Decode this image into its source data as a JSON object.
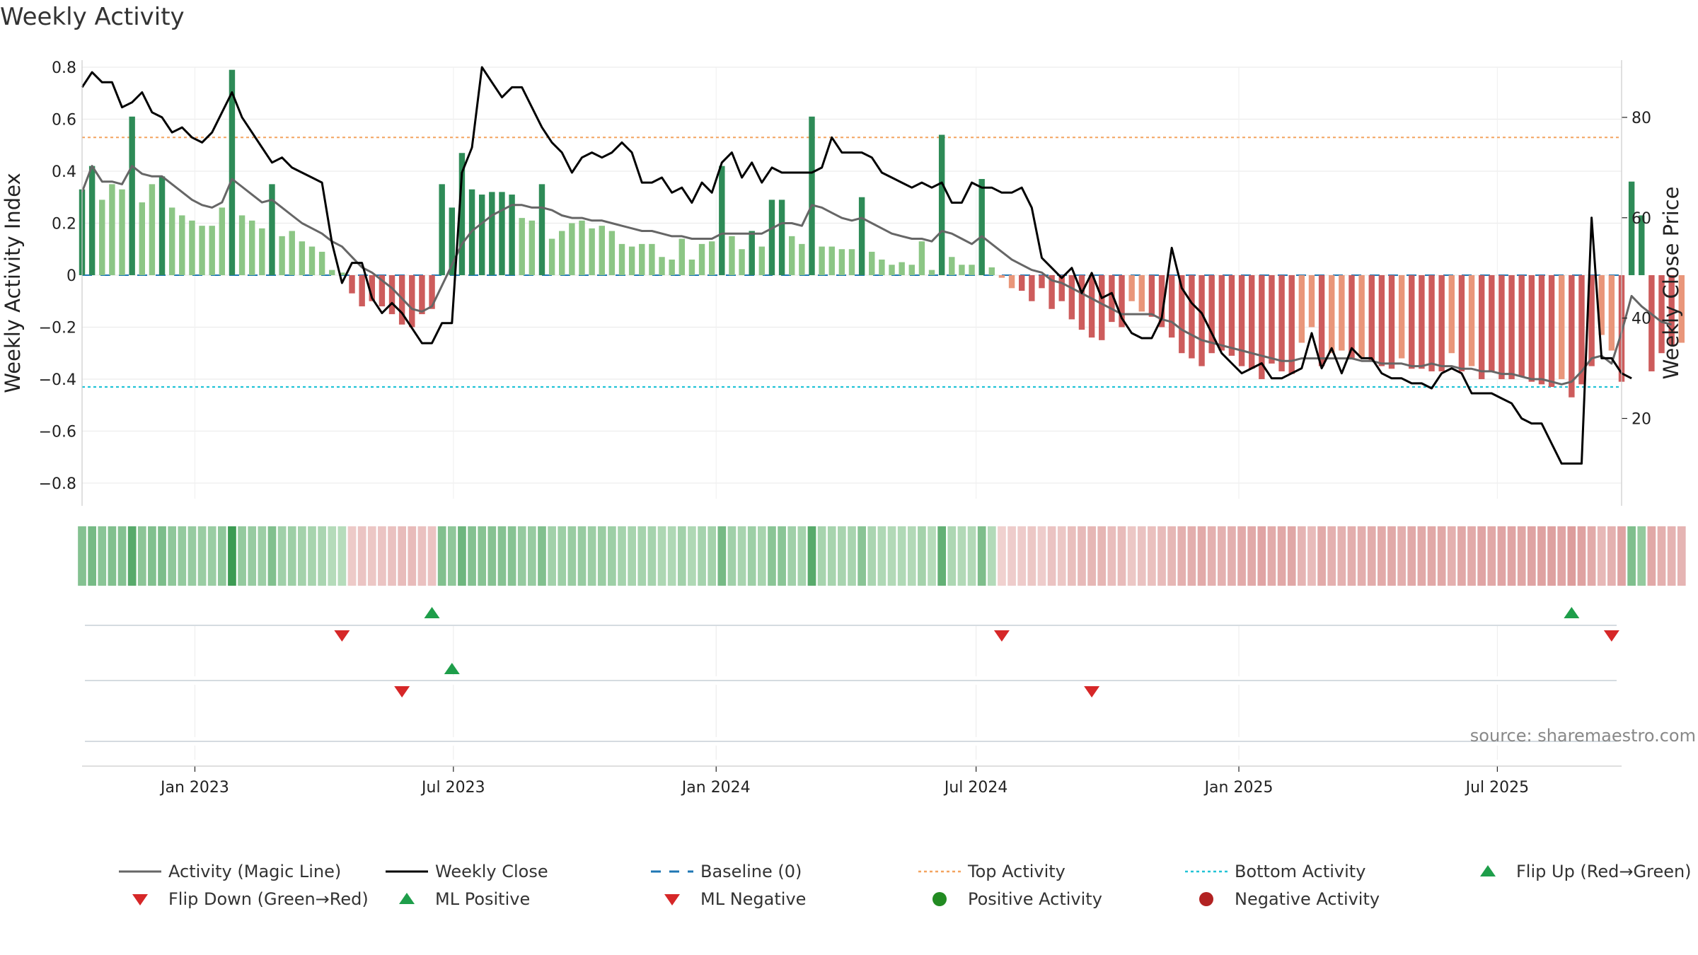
{
  "title": "Weekly Activity",
  "source": "source: sharemaestro.com",
  "colors": {
    "green_strong": "#2e8b57",
    "green_light": "#8cc685",
    "red_strong": "#cd5c5c",
    "red_light": "#e9967a",
    "magic_line": "#666666",
    "close_line": "#000000",
    "baseline": "#1f77b4",
    "top_line": "#f4a460",
    "bottom_line": "#22c3d6",
    "flip_up": "#1e9e4a",
    "flip_down": "#d62728",
    "positive_dot": "#228b22",
    "negative_dot": "#b22222"
  },
  "chart_data": {
    "type": "bar",
    "title": "Weekly Activity",
    "ylabel": "Weekly Activity Index",
    "y2label": "Weekly Close Price",
    "ylim": [
      -0.86,
      0.8
    ],
    "y2lim": [
      4,
      90
    ],
    "x_start": "2022-10-14",
    "x_end": "2025-09-26",
    "x_step_days": 7,
    "x_ticks": [
      "Jan 2023",
      "Jul 2023",
      "Jan 2024",
      "Jul 2024",
      "Jan 2025",
      "Jul 2025"
    ],
    "x_tick_dates": [
      "2023-01-01",
      "2023-07-01",
      "2024-01-01",
      "2024-07-01",
      "2025-01-01",
      "2025-07-01"
    ],
    "y_ticks": [
      0.8,
      0.6,
      0.4,
      0.2,
      0,
      -0.2,
      -0.4,
      -0.6,
      -0.8
    ],
    "y_tick_labels": [
      "0.8",
      "0.6",
      "0.4",
      "0.2",
      "0",
      "−0.2",
      "−0.4",
      "−0.6",
      "−0.8"
    ],
    "y2_ticks": [
      80,
      60,
      40,
      20
    ],
    "top_activity": 0.53,
    "bottom_activity": -0.43,
    "activity": [
      0.33,
      0.42,
      0.29,
      0.35,
      0.33,
      0.61,
      0.28,
      0.35,
      0.38,
      0.26,
      0.23,
      0.21,
      0.19,
      0.19,
      0.26,
      0.79,
      0.23,
      0.21,
      0.18,
      0.35,
      0.15,
      0.17,
      0.13,
      0.11,
      0.09,
      0.02,
      0.01,
      -0.07,
      -0.12,
      -0.1,
      -0.12,
      -0.15,
      -0.19,
      -0.2,
      -0.15,
      -0.13,
      0.35,
      0.26,
      0.47,
      0.33,
      0.31,
      0.32,
      0.32,
      0.31,
      0.22,
      0.21,
      0.35,
      0.14,
      0.17,
      0.2,
      0.21,
      0.18,
      0.19,
      0.17,
      0.12,
      0.11,
      0.12,
      0.12,
      0.07,
      0.06,
      0.14,
      0.06,
      0.12,
      0.13,
      0.42,
      0.15,
      0.1,
      0.17,
      0.11,
      0.29,
      0.29,
      0.15,
      0.12,
      0.61,
      0.11,
      0.11,
      0.1,
      0.1,
      0.3,
      0.09,
      0.06,
      0.04,
      0.05,
      0.04,
      0.13,
      0.02,
      0.54,
      0.07,
      0.04,
      0.04,
      0.37,
      0.03,
      -0.01,
      -0.05,
      -0.06,
      -0.1,
      -0.05,
      -0.13,
      -0.1,
      -0.17,
      -0.21,
      -0.24,
      -0.25,
      -0.18,
      -0.2,
      -0.1,
      -0.14,
      -0.16,
      -0.2,
      -0.24,
      -0.3,
      -0.32,
      -0.35,
      -0.3,
      -0.29,
      -0.31,
      -0.35,
      -0.36,
      -0.4,
      -0.34,
      -0.37,
      -0.38,
      -0.26,
      -0.2,
      -0.35,
      -0.3,
      -0.29,
      -0.32,
      -0.32,
      -0.33,
      -0.35,
      -0.36,
      -0.32,
      -0.36,
      -0.36,
      -0.37,
      -0.37,
      -0.3,
      -0.37,
      -0.35,
      -0.4,
      -0.37,
      -0.4,
      -0.4,
      -0.39,
      -0.41,
      -0.42,
      -0.43,
      -0.4,
      -0.47,
      -0.42,
      -0.35,
      -0.23,
      -0.29,
      -0.41,
      0.36,
      0.23,
      -0.37,
      -0.3,
      -0.27,
      -0.26
    ],
    "magic_line": [
      0.32,
      0.42,
      0.36,
      0.36,
      0.35,
      0.42,
      0.39,
      0.38,
      0.38,
      0.35,
      0.32,
      0.29,
      0.27,
      0.26,
      0.28,
      0.37,
      0.34,
      0.31,
      0.28,
      0.29,
      0.26,
      0.23,
      0.2,
      0.18,
      0.16,
      0.13,
      0.11,
      0.07,
      0.03,
      0.01,
      -0.02,
      -0.05,
      -0.09,
      -0.13,
      -0.14,
      -0.12,
      -0.04,
      0.04,
      0.12,
      0.17,
      0.2,
      0.23,
      0.25,
      0.27,
      0.27,
      0.26,
      0.26,
      0.25,
      0.23,
      0.22,
      0.22,
      0.21,
      0.21,
      0.2,
      0.19,
      0.18,
      0.17,
      0.17,
      0.16,
      0.15,
      0.15,
      0.14,
      0.14,
      0.14,
      0.16,
      0.16,
      0.16,
      0.16,
      0.16,
      0.18,
      0.2,
      0.2,
      0.19,
      0.27,
      0.26,
      0.24,
      0.22,
      0.21,
      0.22,
      0.2,
      0.18,
      0.16,
      0.15,
      0.14,
      0.14,
      0.13,
      0.17,
      0.16,
      0.14,
      0.12,
      0.15,
      0.12,
      0.09,
      0.06,
      0.04,
      0.02,
      0.01,
      -0.02,
      -0.03,
      -0.05,
      -0.07,
      -0.09,
      -0.11,
      -0.13,
      -0.15,
      -0.15,
      -0.15,
      -0.15,
      -0.17,
      -0.18,
      -0.21,
      -0.23,
      -0.25,
      -0.26,
      -0.27,
      -0.28,
      -0.29,
      -0.3,
      -0.31,
      -0.32,
      -0.33,
      -0.33,
      -0.32,
      -0.32,
      -0.32,
      -0.32,
      -0.32,
      -0.32,
      -0.33,
      -0.33,
      -0.34,
      -0.34,
      -0.34,
      -0.35,
      -0.35,
      -0.34,
      -0.35,
      -0.35,
      -0.36,
      -0.36,
      -0.37,
      -0.37,
      -0.38,
      -0.38,
      -0.39,
      -0.4,
      -0.4,
      -0.41,
      -0.42,
      -0.41,
      -0.37,
      -0.32,
      -0.31,
      -0.34,
      -0.22,
      -0.08,
      -0.12,
      -0.15,
      -0.18,
      -0.19
    ],
    "weekly_close": [
      86,
      89,
      87,
      87,
      82,
      83,
      85,
      81,
      80,
      77,
      78,
      76,
      75,
      77,
      81,
      85,
      80,
      77,
      74,
      71,
      72,
      70,
      69,
      68,
      67,
      55,
      47,
      51,
      51,
      44,
      41,
      43,
      41,
      38,
      35,
      35,
      39,
      39,
      69,
      74,
      90,
      87,
      84,
      86,
      86,
      82,
      78,
      75,
      73,
      69,
      72,
      73,
      72,
      73,
      75,
      73,
      67,
      67,
      68,
      65,
      66,
      63,
      67,
      65,
      71,
      73,
      68,
      71,
      67,
      70,
      69,
      69,
      69,
      69,
      70,
      76,
      73,
      73,
      73,
      72,
      69,
      68,
      67,
      66,
      67,
      66,
      67,
      63,
      63,
      67,
      66,
      66,
      65,
      65,
      66,
      62,
      52,
      50,
      48,
      50,
      45,
      49,
      44,
      45,
      40,
      37,
      36,
      36,
      40,
      54,
      46,
      43,
      41,
      37,
      33,
      31,
      29,
      30,
      31,
      28,
      28,
      29,
      30,
      37,
      30,
      34,
      29,
      34,
      32,
      32,
      29,
      28,
      28,
      27,
      27,
      26,
      29,
      30,
      29,
      25,
      25,
      25,
      24,
      23,
      20,
      19,
      19,
      15,
      11,
      11,
      11,
      60,
      32,
      32,
      29,
      28
    ],
    "flip_up_dates": [
      "2023-06-16",
      "2025-08-22"
    ],
    "flip_down_dates": [
      "2023-04-14",
      "2024-07-19",
      "2025-09-19"
    ],
    "ml_positive_dates": [
      "2023-06-30"
    ],
    "ml_negative_dates": [
      "2023-05-26",
      "2024-09-20"
    ]
  },
  "legend": [
    {
      "label": "Activity (Magic Line)",
      "symbol": "line-gray"
    },
    {
      "label": "Weekly Close",
      "symbol": "line-black"
    },
    {
      "label": "Baseline (0)",
      "symbol": "line-dashed-blue"
    },
    {
      "label": "Top Activity",
      "symbol": "line-dotted-orange"
    },
    {
      "label": "Bottom Activity",
      "symbol": "line-dotted-cyan"
    },
    {
      "label": "Flip Up (Red→Green)",
      "symbol": "triangle-up-green"
    },
    {
      "label": "Flip Down (Green→Red)",
      "symbol": "triangle-down-red"
    },
    {
      "label": "ML Positive",
      "symbol": "triangle-up-green"
    },
    {
      "label": "ML Negative",
      "symbol": "triangle-down-red"
    },
    {
      "label": "Positive Activity",
      "symbol": "dot-green"
    },
    {
      "label": "Negative Activity",
      "symbol": "dot-red"
    }
  ]
}
